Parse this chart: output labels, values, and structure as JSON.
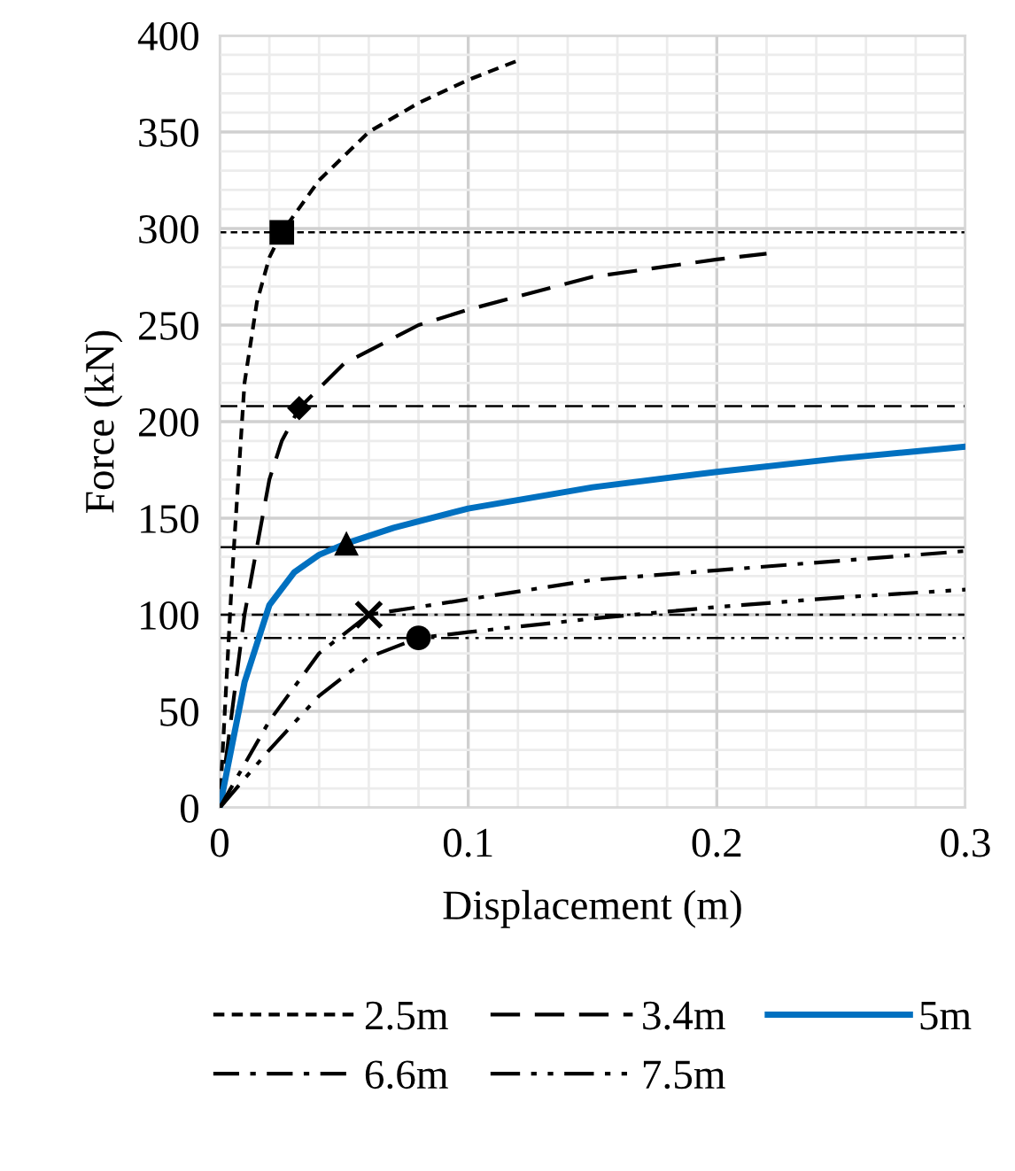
{
  "chart_data": {
    "type": "line",
    "xlabel": "Displacement (m)",
    "ylabel": "Force (kN)",
    "xlim": [
      0,
      0.3
    ],
    "xticks": [
      0,
      0.1,
      0.2,
      0.3
    ],
    "ylim": [
      0,
      400
    ],
    "yticks": [
      0,
      50,
      100,
      150,
      200,
      250,
      300,
      350,
      400
    ],
    "grid": true,
    "legend": "bottom",
    "marker": "none",
    "series": [
      {
        "name": "2.5m",
        "color": "#000000",
        "line_style": "dotted",
        "x": [
          0,
          0.005,
          0.01,
          0.015,
          0.02,
          0.025,
          0.04,
          0.06,
          0.08,
          0.1,
          0.12
        ],
        "values": [
          0,
          120,
          220,
          262,
          285,
          298,
          325,
          350,
          365,
          377,
          387
        ]
      },
      {
        "name": "3.4m",
        "color": "#000000",
        "line_style": "dashed",
        "x": [
          0,
          0.01,
          0.02,
          0.025,
          0.032,
          0.05,
          0.08,
          0.1,
          0.15,
          0.2,
          0.22
        ],
        "values": [
          0,
          100,
          170,
          190,
          207,
          230,
          250,
          258,
          275,
          284,
          287
        ]
      },
      {
        "name": "5m",
        "color": "#0070c0",
        "line_style": "solid",
        "x": [
          0,
          0.01,
          0.02,
          0.03,
          0.04,
          0.051,
          0.07,
          0.1,
          0.15,
          0.2,
          0.25,
          0.3
        ],
        "values": [
          0,
          65,
          105,
          122,
          131,
          137,
          145,
          155,
          166,
          174,
          181,
          187
        ]
      },
      {
        "name": "6.6m",
        "color": "#000000",
        "line_style": "dashdot",
        "x": [
          0,
          0.02,
          0.04,
          0.06,
          0.1,
          0.15,
          0.2,
          0.25,
          0.3
        ],
        "values": [
          0,
          45,
          80,
          100,
          108,
          118,
          123,
          128,
          133
        ]
      },
      {
        "name": "7.5m",
        "color": "#000000",
        "line_style": "dashdotdot",
        "x": [
          0,
          0.02,
          0.04,
          0.06,
          0.08,
          0.1,
          0.15,
          0.2,
          0.25,
          0.3
        ],
        "values": [
          0,
          30,
          58,
          78,
          88,
          91,
          98,
          104,
          109,
          113
        ]
      },
      {
        "type": "scatter",
        "color": "#000000",
        "marker": "square",
        "x": [
          0.025
        ],
        "values": [
          298
        ]
      },
      {
        "type": "scatter",
        "color": "#000000",
        "marker": "diamond",
        "x": [
          0.032
        ],
        "values": [
          207
        ]
      },
      {
        "type": "scatter",
        "color": "#000000",
        "marker": "triangle",
        "x": [
          0.051
        ],
        "values": [
          137
        ]
      },
      {
        "type": "scatter",
        "color": "#000000",
        "marker": "cross",
        "x": [
          0.06
        ],
        "values": [
          100
        ]
      },
      {
        "type": "scatter",
        "color": "#000000",
        "marker": "circle",
        "x": [
          0.08
        ],
        "values": [
          88
        ]
      }
    ],
    "ref_lines": [
      {
        "axis": "y",
        "value": 298,
        "color": "#000000",
        "line_style": "dotted"
      },
      {
        "axis": "y",
        "value": 208,
        "color": "#000000",
        "line_style": "dashed"
      },
      {
        "axis": "y",
        "value": 135,
        "color": "#000000",
        "line_style": "solid"
      },
      {
        "axis": "y",
        "value": 100,
        "color": "#000000",
        "line_style": "dashdot"
      },
      {
        "axis": "y",
        "value": 88,
        "color": "#000000",
        "line_style": "dashdotdot"
      }
    ]
  }
}
